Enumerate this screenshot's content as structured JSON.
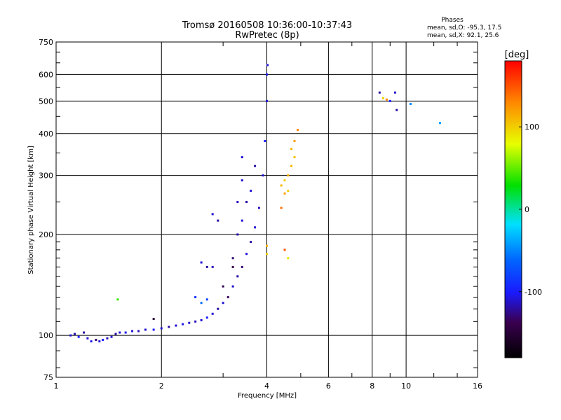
{
  "header": {
    "title": "Tromsø 20160508 10:36:00-10:37:43",
    "subtitle": "RwPretec (8p)"
  },
  "phase_stats": {
    "heading": "Phases",
    "line1": "mean, sd,O: -95.3, 17.5",
    "line2": "mean, sd,X: 92.1, 25.6"
  },
  "chart_data": {
    "type": "scatter",
    "title": "Tromsø 20160508 10:36:00-10:37:43",
    "subtitle": "RwPretec (8p)",
    "xlabel": "Frequency [MHz]",
    "ylabel": "Stationary phase Virtual Height [km]",
    "x_scale": "log",
    "y_scale": "log",
    "xlim": [
      1,
      16
    ],
    "ylim": [
      75,
      750
    ],
    "x_ticks": [
      1,
      2,
      4,
      6,
      8,
      10,
      16
    ],
    "x_tick_labels": [
      "1",
      "2",
      "4",
      "6",
      "8",
      "10",
      "16"
    ],
    "y_ticks": [
      75,
      100,
      200,
      300,
      400,
      500,
      600,
      750
    ],
    "y_tick_labels": [
      "75",
      "100",
      "200",
      "300",
      "400",
      "500",
      "600",
      "750"
    ],
    "grid": true,
    "colorbar": {
      "label": "[deg]",
      "min": -180,
      "max": 180,
      "ticks": [
        -100,
        0,
        100
      ],
      "tick_labels": [
        "-100",
        "0",
        "100"
      ]
    },
    "series": [
      {
        "points": [
          {
            "x": 1.1,
            "y": 100,
            "c": -110
          },
          {
            "x": 1.13,
            "y": 101,
            "c": -115
          },
          {
            "x": 1.16,
            "y": 99,
            "c": -100
          },
          {
            "x": 1.2,
            "y": 102,
            "c": -120
          },
          {
            "x": 1.23,
            "y": 98,
            "c": -110
          },
          {
            "x": 1.26,
            "y": 96,
            "c": -105
          },
          {
            "x": 1.3,
            "y": 97,
            "c": -130
          },
          {
            "x": 1.33,
            "y": 96,
            "c": -110
          },
          {
            "x": 1.36,
            "y": 97,
            "c": -100
          },
          {
            "x": 1.4,
            "y": 98,
            "c": -115
          },
          {
            "x": 1.44,
            "y": 99,
            "c": -110
          },
          {
            "x": 1.48,
            "y": 101,
            "c": -120
          },
          {
            "x": 1.52,
            "y": 102,
            "c": -110
          },
          {
            "x": 1.58,
            "y": 102,
            "c": -105
          },
          {
            "x": 1.65,
            "y": 103,
            "c": -110
          },
          {
            "x": 1.72,
            "y": 103,
            "c": -115
          },
          {
            "x": 1.8,
            "y": 104,
            "c": -110
          },
          {
            "x": 1.9,
            "y": 104,
            "c": -100
          },
          {
            "x": 2.0,
            "y": 105,
            "c": -110
          },
          {
            "x": 2.1,
            "y": 106,
            "c": -120
          },
          {
            "x": 2.2,
            "y": 107,
            "c": -110
          },
          {
            "x": 2.3,
            "y": 108,
            "c": -105
          },
          {
            "x": 2.4,
            "y": 109,
            "c": -110
          },
          {
            "x": 2.5,
            "y": 110,
            "c": -115
          },
          {
            "x": 2.6,
            "y": 111,
            "c": -110
          },
          {
            "x": 2.7,
            "y": 113,
            "c": -100
          },
          {
            "x": 2.8,
            "y": 116,
            "c": -110
          },
          {
            "x": 2.9,
            "y": 120,
            "c": -120
          },
          {
            "x": 3.0,
            "y": 125,
            "c": -110
          },
          {
            "x": 3.1,
            "y": 130,
            "c": -135
          },
          {
            "x": 3.2,
            "y": 140,
            "c": -110
          },
          {
            "x": 3.3,
            "y": 150,
            "c": -120
          },
          {
            "x": 3.4,
            "y": 160,
            "c": -130
          },
          {
            "x": 3.5,
            "y": 175,
            "c": -110
          },
          {
            "x": 3.6,
            "y": 190,
            "c": -120
          },
          {
            "x": 3.7,
            "y": 210,
            "c": -110
          },
          {
            "x": 3.8,
            "y": 240,
            "c": -115
          },
          {
            "x": 3.9,
            "y": 300,
            "c": -110
          },
          {
            "x": 3.95,
            "y": 380,
            "c": -100
          },
          {
            "x": 4.0,
            "y": 500,
            "c": -110
          },
          {
            "x": 4.0,
            "y": 600,
            "c": -105
          },
          {
            "x": 4.02,
            "y": 640,
            "c": -110
          },
          {
            "x": 3.3,
            "y": 200,
            "c": -120
          },
          {
            "x": 3.4,
            "y": 220,
            "c": -110
          },
          {
            "x": 3.5,
            "y": 250,
            "c": -120
          },
          {
            "x": 3.6,
            "y": 270,
            "c": -110
          },
          {
            "x": 3.3,
            "y": 250,
            "c": -115
          },
          {
            "x": 3.4,
            "y": 290,
            "c": -110
          },
          {
            "x": 3.7,
            "y": 320,
            "c": -120
          },
          {
            "x": 3.2,
            "y": 170,
            "c": -130
          },
          {
            "x": 2.6,
            "y": 165,
            "c": -110
          },
          {
            "x": 2.7,
            "y": 160,
            "c": -120
          },
          {
            "x": 2.8,
            "y": 160,
            "c": -115
          },
          {
            "x": 2.5,
            "y": 130,
            "c": -90
          },
          {
            "x": 2.6,
            "y": 125,
            "c": -60
          },
          {
            "x": 2.7,
            "y": 128,
            "c": -80
          },
          {
            "x": 2.8,
            "y": 230,
            "c": -110
          },
          {
            "x": 2.9,
            "y": 220,
            "c": -120
          },
          {
            "x": 3.0,
            "y": 140,
            "c": -135
          },
          {
            "x": 3.2,
            "y": 160,
            "c": -140
          },
          {
            "x": 3.4,
            "y": 340,
            "c": -110
          },
          {
            "x": 1.9,
            "y": 112,
            "c": -150
          },
          {
            "x": 1.5,
            "y": 128,
            "c": 40
          },
          {
            "x": 4.4,
            "y": 280,
            "c": 110
          },
          {
            "x": 4.5,
            "y": 290,
            "c": 100
          },
          {
            "x": 4.6,
            "y": 300,
            "c": 115
          },
          {
            "x": 4.7,
            "y": 320,
            "c": 110
          },
          {
            "x": 4.8,
            "y": 340,
            "c": 105
          },
          {
            "x": 4.8,
            "y": 380,
            "c": 120
          },
          {
            "x": 4.9,
            "y": 410,
            "c": 130
          },
          {
            "x": 4.7,
            "y": 360,
            "c": 110
          },
          {
            "x": 4.6,
            "y": 270,
            "c": 100
          },
          {
            "x": 4.5,
            "y": 265,
            "c": 120
          },
          {
            "x": 4.4,
            "y": 240,
            "c": 140
          },
          {
            "x": 4.5,
            "y": 180,
            "c": 150
          },
          {
            "x": 4.6,
            "y": 170,
            "c": 90
          },
          {
            "x": 4.0,
            "y": 175,
            "c": 100
          },
          {
            "x": 4.0,
            "y": 185,
            "c": 110
          },
          {
            "x": 8.4,
            "y": 530,
            "c": -120
          },
          {
            "x": 8.6,
            "y": 510,
            "c": 100
          },
          {
            "x": 8.8,
            "y": 505,
            "c": 130
          },
          {
            "x": 9.0,
            "y": 500,
            "c": -100
          },
          {
            "x": 9.3,
            "y": 530,
            "c": -110
          },
          {
            "x": 9.4,
            "y": 470,
            "c": -120
          },
          {
            "x": 10.3,
            "y": 490,
            "c": -50
          },
          {
            "x": 12.5,
            "y": 430,
            "c": -40
          }
        ]
      }
    ]
  }
}
